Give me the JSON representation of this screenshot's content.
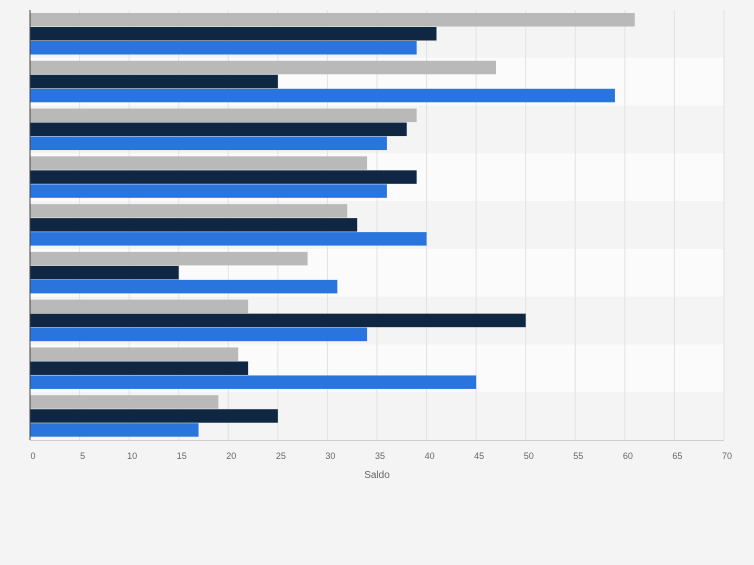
{
  "chart_data": {
    "type": "bar",
    "orientation": "horizontal",
    "xlabel": "Saldo",
    "xlim": [
      0,
      70
    ],
    "xticks": [
      0,
      5,
      10,
      15,
      20,
      25,
      30,
      35,
      40,
      45,
      50,
      55,
      60,
      65,
      70
    ],
    "grid": true,
    "legend": "none",
    "category_count": 9,
    "series": [
      {
        "color": "#b9b9b9",
        "values": [
          61,
          47,
          39,
          34,
          32,
          28,
          22,
          21,
          19
        ]
      },
      {
        "color": "#0f2742",
        "values": [
          41,
          25,
          38,
          39,
          33,
          15,
          50,
          22,
          25
        ]
      },
      {
        "color": "#2a74de",
        "values": [
          39,
          59,
          36,
          36,
          40,
          31,
          34,
          45,
          17
        ]
      }
    ]
  }
}
